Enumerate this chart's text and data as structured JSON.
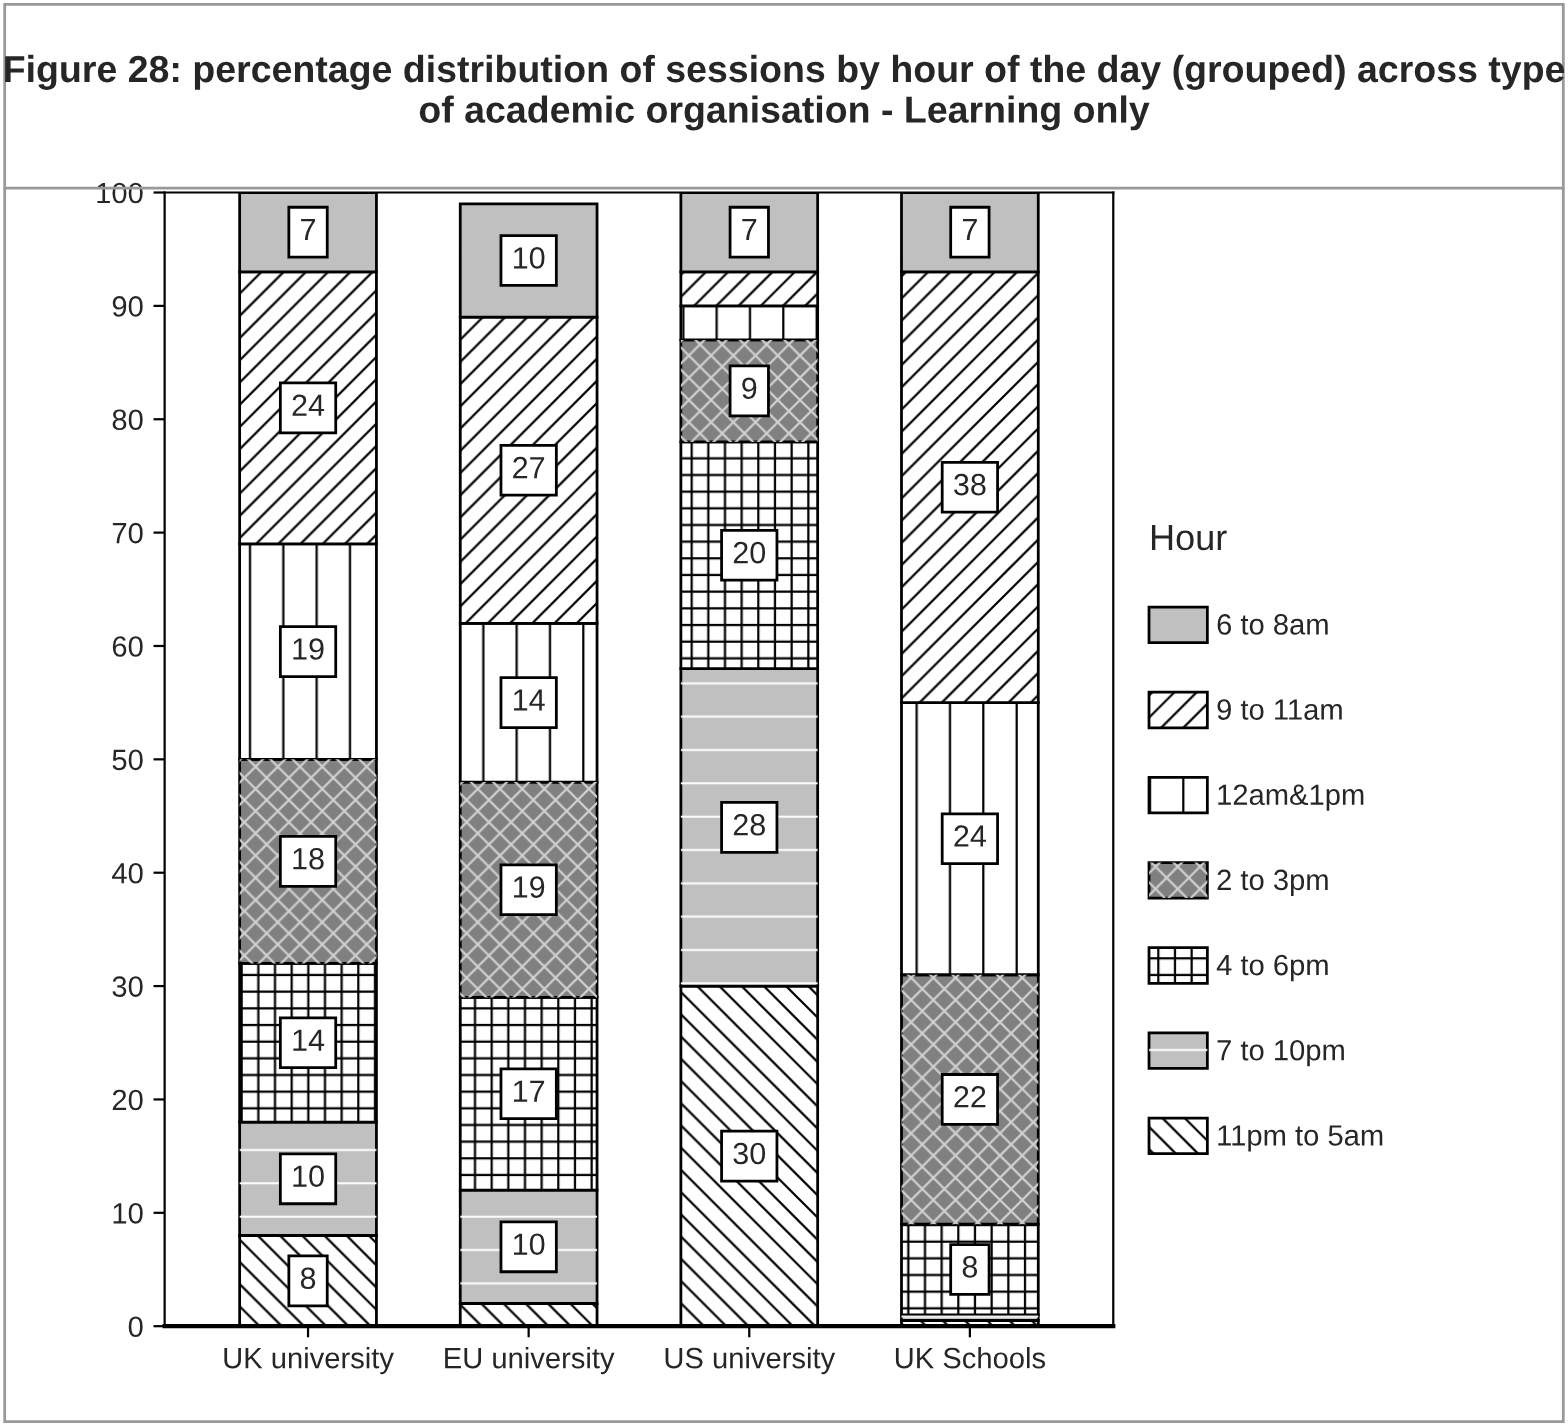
{
  "chart_data": {
    "type": "bar",
    "stacked": true,
    "title": "Figure 28: percentage distribution of sessions by hour of the day (grouped) across type of academic organisation - Learning only",
    "categories": [
      "UK university",
      "EU university",
      "US university",
      "UK Schools"
    ],
    "legend_title": "Hour",
    "legend": "right",
    "grid": false,
    "ylim": [
      0,
      100
    ],
    "yticks": [
      0,
      10,
      20,
      30,
      40,
      50,
      60,
      70,
      80,
      90,
      100
    ],
    "series": [
      {
        "name": "11pm to 5am",
        "color": "#ffffff",
        "values": [
          8,
          2,
          30,
          0.5
        ],
        "value_labels": [
          "8",
          null,
          "30",
          null
        ]
      },
      {
        "name": "7 to 10pm",
        "color": "#c0c0c0",
        "values": [
          10,
          10,
          28,
          0.5
        ],
        "value_labels": [
          "10",
          "10",
          "28",
          null
        ]
      },
      {
        "name": "4 to 6pm",
        "color": "#ffffff",
        "values": [
          14,
          17,
          20,
          8
        ],
        "value_labels": [
          "14",
          "17",
          "20",
          "8"
        ]
      },
      {
        "name": "2 to 3pm",
        "color": "#808080",
        "values": [
          18,
          19,
          9,
          22
        ],
        "value_labels": [
          "18",
          "19",
          "9",
          "22"
        ]
      },
      {
        "name": "12am&1pm",
        "color": "#ffffff",
        "values": [
          19,
          14,
          3,
          24
        ],
        "value_labels": [
          "19",
          "14",
          null,
          "24"
        ]
      },
      {
        "name": "9 to 11am",
        "color": "#ffffff",
        "values": [
          24,
          27,
          3,
          38
        ],
        "value_labels": [
          "24",
          "27",
          null,
          "38"
        ]
      },
      {
        "name": "6 to 8am",
        "color": "#c0c0c0",
        "values": [
          7,
          10,
          7,
          7
        ],
        "value_labels": [
          "7",
          "10",
          "7",
          "7"
        ]
      }
    ]
  }
}
